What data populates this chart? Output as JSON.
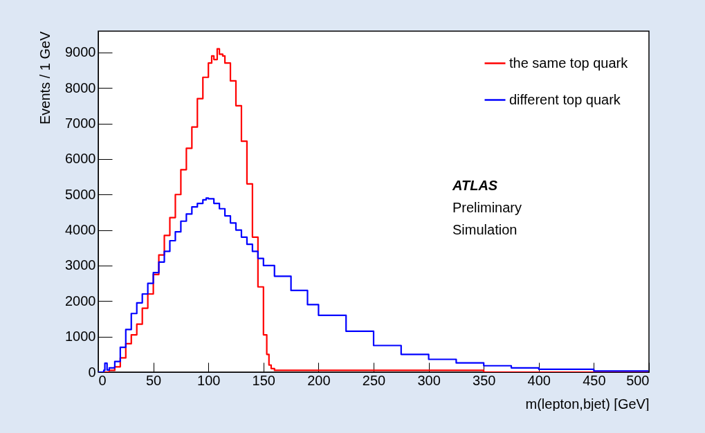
{
  "chart_data": {
    "type": "step",
    "xlabel": "m(lepton,bjet)  [GeV]",
    "ylabel": "Events / 1 GeV",
    "xlim": [
      0,
      500
    ],
    "ylim": [
      0,
      9600
    ],
    "xticks": [
      0,
      50,
      100,
      150,
      200,
      250,
      300,
      350,
      400,
      450,
      500
    ],
    "yticks": [
      0,
      1000,
      2000,
      3000,
      4000,
      5000,
      6000,
      7000,
      8000,
      9000
    ],
    "legend": "top right",
    "annotations": [
      "ATLAS",
      "Preliminary",
      "Simulation"
    ],
    "series": [
      {
        "name": "the same top quark",
        "color": "#ff0000",
        "x": [
          0,
          5,
          10,
          15,
          20,
          25,
          30,
          35,
          40,
          45,
          50,
          55,
          60,
          65,
          70,
          75,
          80,
          85,
          90,
          95,
          100,
          103,
          105,
          108,
          110,
          113,
          115,
          120,
          125,
          130,
          135,
          140,
          145,
          150,
          153,
          155,
          157,
          160,
          170,
          200,
          250,
          300,
          350,
          400,
          450,
          499
        ],
        "values": [
          0,
          0,
          50,
          150,
          400,
          800,
          1050,
          1350,
          1800,
          2200,
          2750,
          3300,
          3850,
          4350,
          5000,
          5700,
          6300,
          6900,
          7700,
          8300,
          8700,
          8900,
          8800,
          9100,
          8950,
          8900,
          8700,
          8200,
          7500,
          6500,
          5300,
          3800,
          2400,
          1050,
          500,
          200,
          100,
          50,
          50,
          50,
          50,
          50,
          0,
          0,
          0,
          0
        ]
      },
      {
        "name": "different top quark",
        "color": "#0000ff",
        "x": [
          0,
          5,
          6,
          8,
          10,
          15,
          20,
          25,
          30,
          35,
          40,
          45,
          50,
          55,
          60,
          65,
          70,
          75,
          80,
          85,
          90,
          95,
          98,
          100,
          105,
          110,
          115,
          120,
          125,
          130,
          135,
          140,
          145,
          150,
          160,
          175,
          190,
          200,
          225,
          250,
          275,
          300,
          325,
          350,
          375,
          400,
          450,
          499
        ],
        "values": [
          0,
          50,
          250,
          60,
          120,
          300,
          700,
          1200,
          1650,
          1950,
          2200,
          2500,
          2800,
          3100,
          3400,
          3700,
          3950,
          4250,
          4450,
          4650,
          4750,
          4850,
          4900,
          4880,
          4750,
          4600,
          4400,
          4200,
          4000,
          3800,
          3600,
          3400,
          3200,
          3000,
          2700,
          2300,
          1900,
          1600,
          1150,
          750,
          500,
          360,
          260,
          180,
          120,
          80,
          30,
          20
        ]
      }
    ]
  }
}
